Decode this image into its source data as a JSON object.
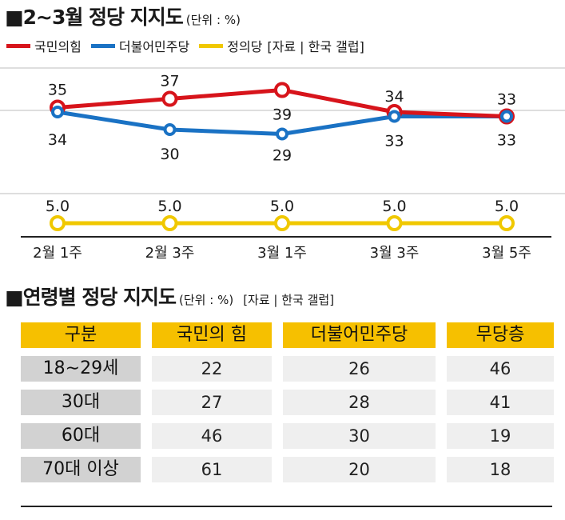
{
  "title": {
    "main": "■2∼3월 정당 지지도",
    "unit": "(단위 : %)"
  },
  "legend": {
    "items": [
      {
        "label": "국민의힘",
        "color": "#d7141b"
      },
      {
        "label": "더불어민주당",
        "color": "#1a72c4"
      },
      {
        "label": "정의당",
        "color": "#f0c800"
      }
    ],
    "source": "[자료 | 한국 갤럽]"
  },
  "chart_data": {
    "type": "line",
    "categories": [
      "2월 1주",
      "2월 3주",
      "3월 1주",
      "3월 3주",
      "3월 5주"
    ],
    "series": [
      {
        "name": "국민의힘",
        "color": "#d7141b",
        "values": [
          35,
          37,
          39,
          34,
          33
        ]
      },
      {
        "name": "더불어민주당",
        "color": "#1a72c4",
        "values": [
          34,
          30,
          29,
          33,
          33
        ]
      },
      {
        "name": "정의당",
        "color": "#f0c800",
        "values": [
          5.0,
          5.0,
          5.0,
          5.0,
          5.0
        ]
      }
    ],
    "grid": true
  },
  "table_title": {
    "main": "■연령별 정당 지지도",
    "unit": "(단위 : %)",
    "source": "[자료 | 한국 갤럽]"
  },
  "table": {
    "headers": [
      "구분",
      "국민의 힘",
      "더불어민주당",
      "무당층"
    ],
    "rows": [
      {
        "label": "18∼29세",
        "values": [
          "22",
          "26",
          "46"
        ]
      },
      {
        "label": "30대",
        "values": [
          "27",
          "28",
          "41"
        ]
      },
      {
        "label": "60대",
        "values": [
          "46",
          "30",
          "19"
        ]
      },
      {
        "label": "70대 이상",
        "values": [
          "61",
          "20",
          "18"
        ]
      }
    ]
  }
}
